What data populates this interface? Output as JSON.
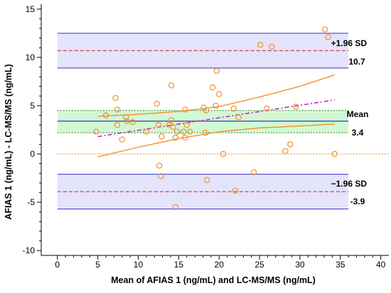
{
  "chart_data": {
    "type": "scatter",
    "subtype": "bland-altman",
    "title": "",
    "xlabel": "Mean of AFIAS 1 (ng/mL) and LC-MS/MS (ng/mL)",
    "ylabel": "AFIAS 1 (ng/mL) - LC-MS/MS (ng/mL)",
    "xlim": [
      -2,
      41
    ],
    "ylim": [
      -10.5,
      15.5
    ],
    "x_ticks": [
      0,
      5,
      10,
      15,
      20,
      25,
      30,
      35,
      40
    ],
    "y_ticks": [
      -10,
      -5,
      0,
      5,
      10,
      15
    ],
    "grid": false,
    "reference_lines": {
      "mean": {
        "value": 3.4,
        "ci": [
          2.2,
          4.5
        ],
        "label": "Mean",
        "value_label": "3.4"
      },
      "upper_loa": {
        "value": 10.7,
        "ci": [
          8.9,
          12.5
        ],
        "label": "+1.96 SD",
        "value_label": "10.7"
      },
      "lower_loa": {
        "value": -3.9,
        "ci": [
          -5.7,
          -2.1
        ],
        "label": "−1.96 SD",
        "value_label": "-3.9"
      },
      "zero": {
        "value": 0
      }
    },
    "regression_line": {
      "x": [
        5.0,
        34.3
      ],
      "y": [
        1.8,
        5.6
      ]
    },
    "confidence_band": {
      "upper": {
        "x": [
          5,
          10,
          15,
          20,
          25,
          30,
          34.3
        ],
        "y": [
          3.9,
          4.1,
          4.4,
          4.9,
          5.9,
          7.0,
          8.2
        ]
      },
      "lower": {
        "x": [
          5,
          10,
          15,
          20,
          25,
          30,
          34.3
        ],
        "y": [
          -0.3,
          0.7,
          1.6,
          2.3,
          2.7,
          2.9,
          3.1
        ]
      }
    },
    "points": [
      [
        4.8,
        2.3
      ],
      [
        6.0,
        4.0
      ],
      [
        7.2,
        5.8
      ],
      [
        7.4,
        4.6
      ],
      [
        7.4,
        3.0
      ],
      [
        8.0,
        1.5
      ],
      [
        8.5,
        3.8
      ],
      [
        8.6,
        3.4
      ],
      [
        9.3,
        3.3
      ],
      [
        11.0,
        2.3
      ],
      [
        12.3,
        5.2
      ],
      [
        12.5,
        3.0
      ],
      [
        12.6,
        -1.2
      ],
      [
        12.8,
        -2.3
      ],
      [
        12.9,
        1.8
      ],
      [
        13.8,
        3.0
      ],
      [
        14.1,
        3.5
      ],
      [
        14.1,
        7.1
      ],
      [
        14.3,
        2.8
      ],
      [
        14.6,
        1.7
      ],
      [
        14.6,
        -5.5
      ],
      [
        14.8,
        2.3
      ],
      [
        15.6,
        2.3
      ],
      [
        15.8,
        1.7
      ],
      [
        15.8,
        4.6
      ],
      [
        16.0,
        3.0
      ],
      [
        16.4,
        2.3
      ],
      [
        18.1,
        4.8
      ],
      [
        18.3,
        2.2
      ],
      [
        18.4,
        4.5
      ],
      [
        18.5,
        -2.7
      ],
      [
        19.2,
        6.9
      ],
      [
        19.6,
        5.0
      ],
      [
        19.7,
        8.6
      ],
      [
        20.0,
        6.2
      ],
      [
        20.5,
        0.0
      ],
      [
        21.8,
        4.7
      ],
      [
        22.0,
        -3.8
      ],
      [
        22.4,
        3.8
      ],
      [
        24.3,
        -1.9
      ],
      [
        25.1,
        11.3
      ],
      [
        25.9,
        4.7
      ],
      [
        26.5,
        11.1
      ],
      [
        28.2,
        0.3
      ],
      [
        28.8,
        1.0
      ],
      [
        29.5,
        4.9
      ],
      [
        33.1,
        12.9
      ],
      [
        33.5,
        12.1
      ],
      [
        34.3,
        0.0
      ]
    ]
  },
  "colors": {
    "band_fill_loa": "#e4e4fb",
    "band_fill_mean": "#d2f8d2",
    "line_blue": "#3333cc",
    "line_red_dash": "#bb2222",
    "line_magenta": "#cc22cc",
    "line_orange": "#f09030",
    "point_stroke": "#f09030",
    "zero_line": "#ee8822"
  }
}
